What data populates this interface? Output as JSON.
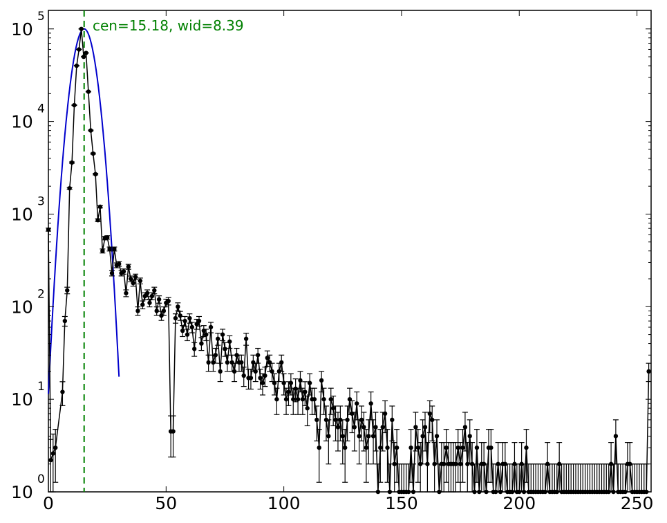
{
  "chart_data": {
    "type": "scatter",
    "title": "",
    "xlabel": "",
    "ylabel": "",
    "xlim": [
      0,
      256
    ],
    "ylim_exponent": [
      0,
      5.2
    ],
    "yscale": "log",
    "grid": false,
    "x_ticks": [
      "0",
      "50",
      "100",
      "150",
      "200",
      "250"
    ],
    "y_ticks": [
      {
        "base": "10",
        "exp": "0",
        "value": 0
      },
      {
        "base": "10",
        "exp": "1",
        "value": 1
      },
      {
        "base": "10",
        "exp": "2",
        "value": 2
      },
      {
        "base": "10",
        "exp": "3",
        "value": 3
      },
      {
        "base": "10",
        "exp": "4",
        "value": 4
      },
      {
        "base": "10",
        "exp": "5",
        "value": 5
      }
    ],
    "annotation": "cen=15.18, wid=8.39",
    "center_line_x": 15.18,
    "colors": {
      "data": "#000000",
      "fit": "#0000cc",
      "center": "#008000"
    },
    "data_points": [
      [
        0,
        680
      ],
      [
        1,
        2.2
      ],
      [
        2,
        2.6
      ],
      [
        3,
        3
      ],
      [
        6,
        12
      ],
      [
        7,
        70
      ],
      [
        8,
        150
      ],
      [
        9,
        1900
      ],
      [
        10,
        3600
      ],
      [
        11,
        15000
      ],
      [
        12,
        40000
      ],
      [
        13,
        60000
      ],
      [
        14,
        100000
      ],
      [
        15,
        50000
      ],
      [
        16,
        55000
      ],
      [
        17,
        21000
      ],
      [
        18,
        8000
      ],
      [
        19,
        4500
      ],
      [
        20,
        2700
      ],
      [
        21,
        860
      ],
      [
        22,
        1200
      ],
      [
        23,
        400
      ],
      [
        24,
        550
      ],
      [
        25,
        560
      ],
      [
        26,
        420
      ],
      [
        27,
        230
      ],
      [
        28,
        420
      ],
      [
        29,
        280
      ],
      [
        30,
        290
      ],
      [
        31,
        230
      ],
      [
        32,
        240
      ],
      [
        33,
        140
      ],
      [
        34,
        270
      ],
      [
        35,
        200
      ],
      [
        36,
        180
      ],
      [
        37,
        210
      ],
      [
        38,
        90
      ],
      [
        39,
        190
      ],
      [
        40,
        105
      ],
      [
        41,
        130
      ],
      [
        42,
        140
      ],
      [
        43,
        110
      ],
      [
        44,
        130
      ],
      [
        45,
        150
      ],
      [
        46,
        90
      ],
      [
        47,
        120
      ],
      [
        48,
        80
      ],
      [
        49,
        90
      ],
      [
        50,
        110
      ],
      [
        51,
        115
      ],
      [
        52,
        4.5
      ],
      [
        53,
        4.5
      ],
      [
        54,
        75
      ],
      [
        55,
        100
      ],
      [
        56,
        80
      ],
      [
        57,
        55
      ],
      [
        58,
        70
      ],
      [
        59,
        50
      ],
      [
        60,
        75
      ],
      [
        61,
        60
      ],
      [
        62,
        35
      ],
      [
        63,
        65
      ],
      [
        64,
        70
      ],
      [
        65,
        40
      ],
      [
        66,
        55
      ],
      [
        67,
        50
      ],
      [
        68,
        25
      ],
      [
        69,
        60
      ],
      [
        70,
        25
      ],
      [
        71,
        30
      ],
      [
        72,
        45
      ],
      [
        73,
        20
      ],
      [
        74,
        50
      ],
      [
        75,
        35
      ],
      [
        76,
        25
      ],
      [
        77,
        42
      ],
      [
        78,
        25
      ],
      [
        79,
        20
      ],
      [
        80,
        30
      ],
      [
        81,
        25
      ],
      [
        82,
        25
      ],
      [
        83,
        18
      ],
      [
        84,
        45
      ],
      [
        85,
        17
      ],
      [
        86,
        17
      ],
      [
        87,
        25
      ],
      [
        88,
        20
      ],
      [
        89,
        30
      ],
      [
        90,
        17
      ],
      [
        91,
        15
      ],
      [
        92,
        18
      ],
      [
        93,
        28
      ],
      [
        94,
        25
      ],
      [
        95,
        20
      ],
      [
        96,
        15
      ],
      [
        97,
        10
      ],
      [
        98,
        20
      ],
      [
        99,
        25
      ],
      [
        100,
        15
      ],
      [
        101,
        10
      ],
      [
        102,
        12
      ],
      [
        103,
        15
      ],
      [
        104,
        10
      ],
      [
        105,
        13
      ],
      [
        106,
        10
      ],
      [
        107,
        16
      ],
      [
        108,
        10
      ],
      [
        109,
        12
      ],
      [
        110,
        8
      ],
      [
        111,
        15
      ],
      [
        112,
        10
      ],
      [
        113,
        10
      ],
      [
        114,
        6
      ],
      [
        115,
        3
      ],
      [
        116,
        16
      ],
      [
        117,
        10
      ],
      [
        118,
        6
      ],
      [
        119,
        4
      ],
      [
        120,
        10
      ],
      [
        121,
        8
      ],
      [
        122,
        6
      ],
      [
        123,
        5
      ],
      [
        124,
        6
      ],
      [
        125,
        4
      ],
      [
        126,
        3
      ],
      [
        127,
        6
      ],
      [
        128,
        10
      ],
      [
        129,
        7
      ],
      [
        130,
        5
      ],
      [
        131,
        9
      ],
      [
        132,
        4
      ],
      [
        133,
        6
      ],
      [
        134,
        5
      ],
      [
        135,
        3
      ],
      [
        136,
        4
      ],
      [
        137,
        9
      ],
      [
        138,
        4
      ],
      [
        139,
        5
      ],
      [
        140,
        1
      ],
      [
        141,
        3
      ],
      [
        142,
        5
      ],
      [
        143,
        7
      ],
      [
        144,
        3
      ],
      [
        145,
        1
      ],
      [
        146,
        6
      ],
      [
        147,
        2
      ],
      [
        148,
        3
      ],
      [
        149,
        1
      ],
      [
        150,
        1
      ],
      [
        151,
        1
      ],
      [
        152,
        1
      ],
      [
        153,
        1
      ],
      [
        154,
        3
      ],
      [
        155,
        1
      ],
      [
        156,
        5
      ],
      [
        157,
        3
      ],
      [
        158,
        2
      ],
      [
        159,
        4
      ],
      [
        160,
        5
      ],
      [
        161,
        2
      ],
      [
        162,
        7
      ],
      [
        163,
        6
      ],
      [
        164,
        2
      ],
      [
        165,
        4
      ],
      [
        166,
        1
      ],
      [
        167,
        2
      ],
      [
        168,
        2
      ],
      [
        169,
        3
      ],
      [
        170,
        2
      ],
      [
        171,
        2
      ],
      [
        172,
        2
      ],
      [
        173,
        2
      ],
      [
        174,
        3
      ],
      [
        175,
        2
      ],
      [
        176,
        3
      ],
      [
        177,
        5
      ],
      [
        178,
        2
      ],
      [
        179,
        4
      ],
      [
        180,
        2
      ],
      [
        181,
        1
      ],
      [
        182,
        3
      ],
      [
        183,
        1
      ],
      [
        184,
        2
      ],
      [
        185,
        2
      ],
      [
        186,
        1
      ],
      [
        187,
        3
      ],
      [
        188,
        3
      ],
      [
        189,
        1
      ],
      [
        190,
        1
      ],
      [
        191,
        2
      ],
      [
        192,
        1
      ],
      [
        193,
        2
      ],
      [
        194,
        2
      ],
      [
        195,
        1
      ],
      [
        196,
        1
      ],
      [
        197,
        1
      ],
      [
        198,
        2
      ],
      [
        199,
        1
      ],
      [
        200,
        1
      ],
      [
        201,
        2
      ],
      [
        202,
        1
      ],
      [
        203,
        3
      ],
      [
        204,
        1
      ],
      [
        205,
        1
      ],
      [
        206,
        1
      ],
      [
        207,
        1
      ],
      [
        208,
        1
      ],
      [
        209,
        1
      ],
      [
        210,
        1
      ],
      [
        211,
        1
      ],
      [
        212,
        2
      ],
      [
        213,
        1
      ],
      [
        214,
        1
      ],
      [
        215,
        1
      ],
      [
        216,
        1
      ],
      [
        217,
        2
      ],
      [
        218,
        1
      ],
      [
        219,
        1
      ],
      [
        220,
        1
      ],
      [
        221,
        1
      ],
      [
        222,
        1
      ],
      [
        223,
        1
      ],
      [
        224,
        1
      ],
      [
        225,
        1
      ],
      [
        226,
        1
      ],
      [
        227,
        1
      ],
      [
        228,
        1
      ],
      [
        229,
        1
      ],
      [
        230,
        1
      ],
      [
        231,
        1
      ],
      [
        232,
        1
      ],
      [
        233,
        1
      ],
      [
        234,
        1
      ],
      [
        235,
        1
      ],
      [
        236,
        1
      ],
      [
        237,
        1
      ],
      [
        238,
        1
      ],
      [
        239,
        2
      ],
      [
        240,
        1
      ],
      [
        241,
        4
      ],
      [
        242,
        1
      ],
      [
        243,
        1
      ],
      [
        244,
        1
      ],
      [
        245,
        1
      ],
      [
        246,
        2
      ],
      [
        247,
        2
      ],
      [
        248,
        1
      ],
      [
        249,
        1
      ],
      [
        250,
        1
      ],
      [
        251,
        1
      ],
      [
        252,
        1
      ],
      [
        253,
        1
      ],
      [
        254,
        1
      ],
      [
        255,
        20
      ]
    ]
  }
}
